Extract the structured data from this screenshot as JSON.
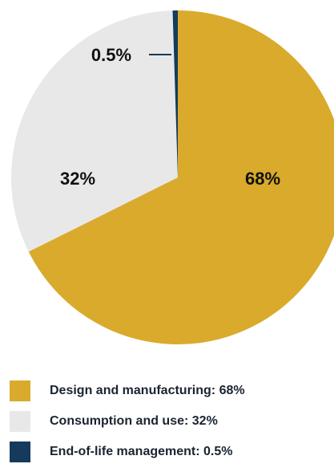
{
  "chart_data": {
    "type": "pie",
    "title": "",
    "slices": [
      {
        "label": "Design and manufacturing",
        "value": 68,
        "display": "68%",
        "color": "#d9aa2b"
      },
      {
        "label": "Consumption and use",
        "value": 32,
        "display": "32%",
        "color": "#e8e8e8"
      },
      {
        "label": "End-of-life management",
        "value": 0.5,
        "display": "0.5%",
        "color": "#153a5c"
      }
    ],
    "start_angle_deg": 0,
    "direction": "clockwise",
    "legend_position": "bottom-left"
  },
  "legend": {
    "items": [
      {
        "text": "Design and manufacturing: 68%",
        "color": "#d9aa2b"
      },
      {
        "text": "Consumption and use: 32%",
        "color": "#e8e8e8"
      },
      {
        "text": "End-of-life management: 0.5%",
        "color": "#153a5c"
      }
    ]
  }
}
